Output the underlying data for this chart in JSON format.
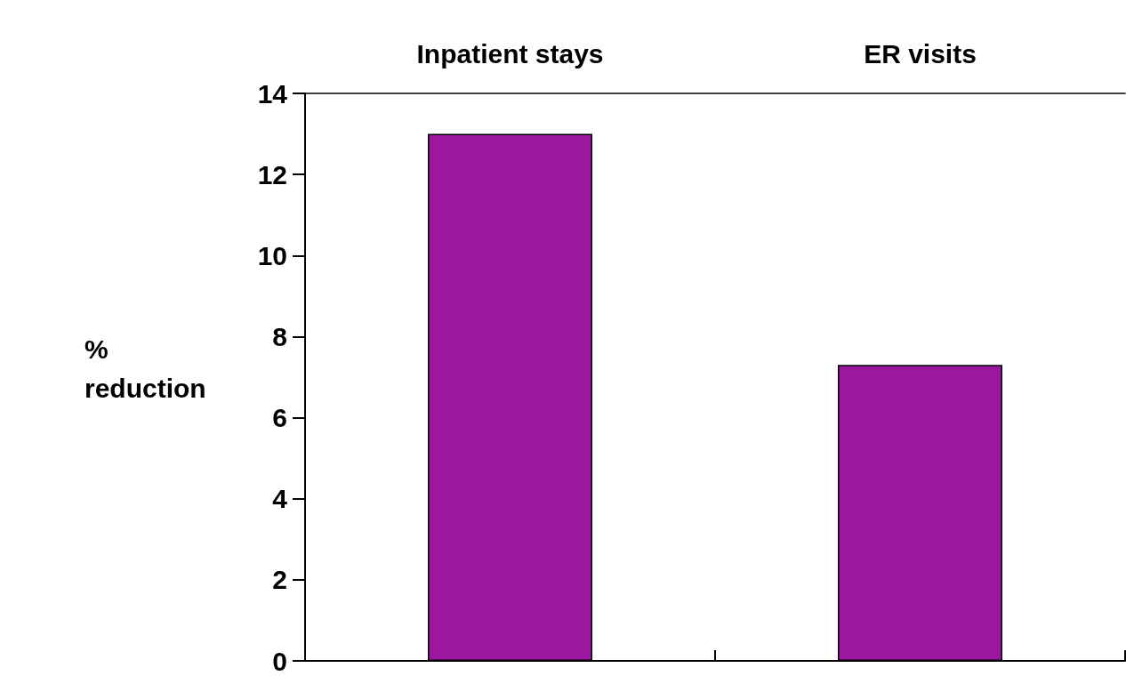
{
  "chart_data": {
    "type": "bar",
    "categories": [
      "Inpatient stays",
      "ER visits"
    ],
    "values": [
      13,
      7.3
    ],
    "color": "#9b17a0",
    "ylabel": "% reduction",
    "ylim": [
      0,
      14
    ],
    "yticks": [
      0,
      2,
      4,
      6,
      8,
      10,
      12,
      14
    ],
    "grid": false
  }
}
